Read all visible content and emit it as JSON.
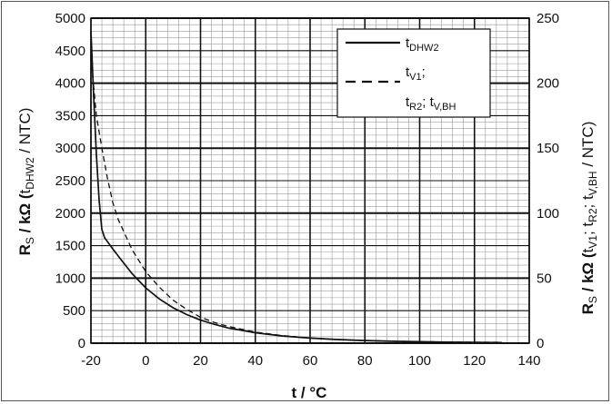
{
  "chart_data": {
    "type": "line",
    "xlabel": "t / °C",
    "ylabel_left": {
      "base": "R",
      "sub": "S",
      "after": " / kΩ (",
      "t": "t",
      "tsub": "DHW2",
      "tail": " / NTC)"
    },
    "ylabel_right": {
      "base": "R",
      "sub": "S",
      "after": " / kΩ (",
      "t1": "t",
      "t1sub": "V1",
      "sep1": "; ",
      "t2": "t",
      "t2sub": "R2",
      "sep2": "; ",
      "t3": "t",
      "t3sub": "V,BH",
      "tail": " / NTC)"
    },
    "xlim": [
      -20,
      140
    ],
    "ylim_left": [
      0,
      5000
    ],
    "ylim_right": [
      0,
      250
    ],
    "x_ticks": [
      "-20",
      "0",
      "20",
      "40",
      "60",
      "80",
      "100",
      "120",
      "140"
    ],
    "y_ticks_left": [
      "0",
      "500",
      "1000",
      "1500",
      "2000",
      "2500",
      "3000",
      "3500",
      "4000",
      "4500",
      "5000"
    ],
    "y_ticks_right": [
      "0",
      "50",
      "100",
      "150",
      "200",
      "250"
    ],
    "grid": true,
    "legend_position": "top-right",
    "series": [
      {
        "name": "t_DHW2",
        "legend": {
          "base": "t",
          "sub": "DHW2"
        },
        "axis": "left",
        "style": "solid",
        "x": [
          -20,
          -19,
          -18,
          -17,
          -16,
          -15,
          -12,
          -10,
          -5,
          0,
          5,
          10,
          15,
          20,
          25,
          30,
          40,
          50,
          60,
          70,
          80,
          90,
          100,
          110,
          120,
          130
        ],
        "y": [
          4800,
          3800,
          2900,
          2200,
          1750,
          1620,
          1450,
          1340,
          1070,
          850,
          680,
          545,
          440,
          355,
          290,
          235,
          160,
          110,
          78,
          56,
          40,
          30,
          22,
          16,
          12,
          10
        ]
      },
      {
        "name": "t_V1; t_R2; t_V,BH",
        "legend": {
          "line1_base": "t",
          "line1_sub": "V1",
          "line1_tail": ";",
          "line2_a": "t",
          "line2_asub": "R2",
          "line2_sep": "; ",
          "line2_b": "t",
          "line2_bsub": "V,BH"
        },
        "axis": "right",
        "style": "dashed",
        "x": [
          -20,
          -18,
          -16,
          -14,
          -12,
          -10,
          -5,
          0,
          5,
          10,
          15,
          20,
          25,
          30,
          40,
          50,
          60,
          70,
          80,
          90,
          100,
          110,
          120,
          130
        ],
        "y": [
          220,
          175,
          150,
          127,
          108,
          95,
          72,
          55,
          43,
          33,
          26,
          20,
          16,
          13,
          8.5,
          5.8,
          4.0,
          2.8,
          2.0,
          1.5,
          1.1,
          0.9,
          0.7,
          0.6
        ]
      }
    ]
  }
}
